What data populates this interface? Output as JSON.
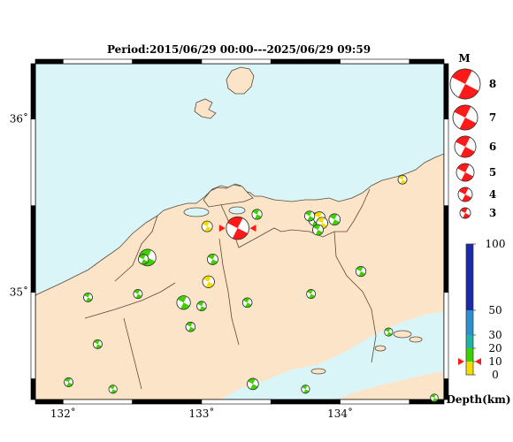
{
  "title": "Period:2015/06/29 00:00---2025/06/29 09:59",
  "map": {
    "lon_range": [
      131.8,
      134.75
    ],
    "lat_range": [
      34.38,
      36.32
    ],
    "lon_ticks": [
      {
        "value": 132,
        "label": "132˚"
      },
      {
        "value": 133,
        "label": "133˚"
      },
      {
        "value": 134,
        "label": "134˚"
      }
    ],
    "lat_ticks": [
      {
        "value": 35,
        "label": "35˚"
      },
      {
        "value": 36,
        "label": "36˚"
      }
    ],
    "colors": {
      "sea": "#d9f5f8",
      "land": "#fbe4c8",
      "border": "#5a4a3a"
    }
  },
  "magnitude_legend": {
    "title": "M",
    "items": [
      {
        "m": 8,
        "label": "8"
      },
      {
        "m": 7,
        "label": "7"
      },
      {
        "m": 6,
        "label": "6"
      },
      {
        "m": 5,
        "label": "5"
      },
      {
        "m": 4,
        "label": "4"
      },
      {
        "m": 3,
        "label": "3"
      }
    ]
  },
  "depth_colorbar": {
    "title": "Depth(km)",
    "ticks": [
      "100",
      "50",
      "30",
      "20",
      "10",
      "0"
    ],
    "segments": [
      {
        "from": 0,
        "to": 10,
        "color": "#f3dd00"
      },
      {
        "from": 10,
        "to": 20,
        "color": "#3fd000"
      },
      {
        "from": 20,
        "to": 30,
        "color": "#20b4a6"
      },
      {
        "from": 30,
        "to": 50,
        "color": "#2c8fd0"
      },
      {
        "from": 50,
        "to": 100,
        "color": "#1b2aa8"
      }
    ],
    "marker_depth": 10
  },
  "events": [
    {
      "lon": 133.26,
      "lat": 35.37,
      "depth": 10,
      "m": 5.1,
      "highlight": true
    },
    {
      "lon": 133.04,
      "lat": 35.38,
      "depth": 8,
      "m": 3.1
    },
    {
      "lon": 133.4,
      "lat": 35.45,
      "depth": 12,
      "m": 3.0
    },
    {
      "lon": 133.08,
      "lat": 35.19,
      "depth": 12,
      "m": 3.1
    },
    {
      "lon": 133.05,
      "lat": 35.06,
      "depth": 7,
      "m": 3.3
    },
    {
      "lon": 132.61,
      "lat": 35.2,
      "depth": 12,
      "m": 4.1
    },
    {
      "lon": 132.58,
      "lat": 35.19,
      "depth": 13,
      "m": 3.0
    },
    {
      "lon": 132.54,
      "lat": 34.99,
      "depth": 13,
      "m": 2.8
    },
    {
      "lon": 132.18,
      "lat": 34.97,
      "depth": 13,
      "m": 2.8
    },
    {
      "lon": 132.87,
      "lat": 34.94,
      "depth": 13,
      "m": 3.6
    },
    {
      "lon": 133.0,
      "lat": 34.92,
      "depth": 14,
      "m": 2.9
    },
    {
      "lon": 132.92,
      "lat": 34.8,
      "depth": 13,
      "m": 2.9
    },
    {
      "lon": 133.33,
      "lat": 34.94,
      "depth": 14,
      "m": 2.9
    },
    {
      "lon": 133.82,
      "lat": 35.42,
      "depth": 10,
      "m": 3.5
    },
    {
      "lon": 133.85,
      "lat": 35.43,
      "depth": 7,
      "m": 3.3
    },
    {
      "lon": 133.87,
      "lat": 35.4,
      "depth": 6,
      "m": 3.2
    },
    {
      "lon": 133.84,
      "lat": 35.36,
      "depth": 12,
      "m": 3.1
    },
    {
      "lon": 133.96,
      "lat": 35.42,
      "depth": 12,
      "m": 3.2
    },
    {
      "lon": 133.78,
      "lat": 35.44,
      "depth": 12,
      "m": 3.0
    },
    {
      "lon": 134.45,
      "lat": 35.65,
      "depth": 6,
      "m": 2.8
    },
    {
      "lon": 134.15,
      "lat": 35.12,
      "depth": 13,
      "m": 3.0
    },
    {
      "lon": 133.79,
      "lat": 34.99,
      "depth": 13,
      "m": 2.8
    },
    {
      "lon": 132.25,
      "lat": 34.7,
      "depth": 13,
      "m": 2.8
    },
    {
      "lon": 132.04,
      "lat": 34.48,
      "depth": 13,
      "m": 2.8
    },
    {
      "lon": 132.36,
      "lat": 34.44,
      "depth": 13,
      "m": 2.7
    },
    {
      "lon": 133.37,
      "lat": 34.47,
      "depth": 12,
      "m": 3.2
    },
    {
      "lon": 133.75,
      "lat": 34.44,
      "depth": 13,
      "m": 2.7
    },
    {
      "lon": 134.35,
      "lat": 34.77,
      "depth": 13,
      "m": 2.7
    },
    {
      "lon": 134.68,
      "lat": 34.39,
      "depth": 13,
      "m": 2.6
    }
  ]
}
